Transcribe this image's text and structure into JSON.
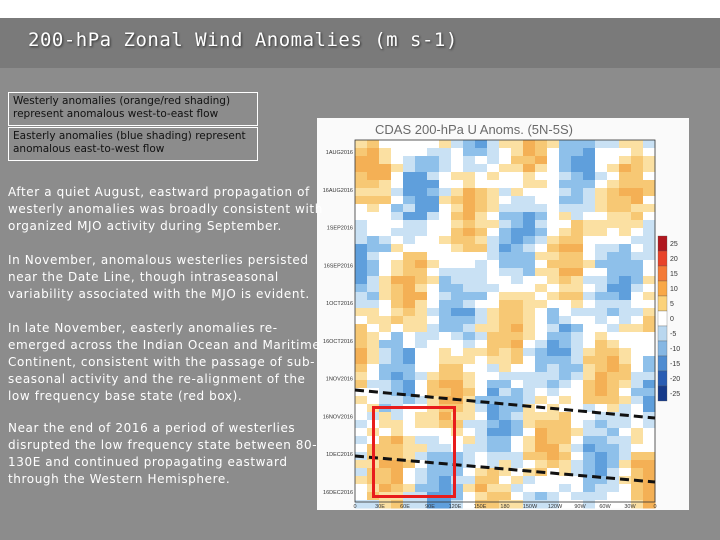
{
  "slide": {
    "title": "200-hPa Zonal Wind Anomalies (m s-1)",
    "legend": {
      "westerly": "Westerly anomalies (orange/red shading) represent anomalous west-to-east flow",
      "easterly": "Easterly anomalies (blue shading) represent anomalous east-to-west flow"
    },
    "paragraphs": [
      "After a quiet August, eastward propagation of westerly anomalies was broadly consistent with organized MJO activity during September.",
      "In November, anomalous westerlies persisted near the Date Line, though intraseasonal variability associated with the MJO is evident.",
      "In late November, easterly anomalies re-emerged across the Indian Ocean and Maritime Continent, consistent with the passage of sub-seasonal activity and the re-alignment of the low frequency base state (red box).",
      "Near the end of 2016 a period of westerlies disrupted the low frequency state between 80-130E and continued propagating eastward through the Western Hemisphere."
    ]
  },
  "figure": {
    "title": "CDAS 200-hPa U Anoms. (5N-5S)",
    "date_labels": [
      "1AUG2016",
      "16AUG2016",
      "1SEP2016",
      "16SEP2016",
      "1OCT2016",
      "16OCT2016",
      "1NOV2016",
      "16NOV2016",
      "1DEC2016",
      "16DEC2016"
    ],
    "lon_labels": [
      "0",
      "30E",
      "60E",
      "90E",
      "120E",
      "150E",
      "180",
      "150W",
      "120W",
      "90W",
      "60W",
      "30W",
      "0"
    ],
    "colorbar_labels": [
      "25",
      "20",
      "15",
      "10",
      "5",
      "0",
      "-5",
      "-10",
      "-15",
      "-20",
      "-25"
    ],
    "colorbar_colors": [
      "#b0171f",
      "#e8432a",
      "#f47a37",
      "#f9a847",
      "#fbd27a",
      "#ffffff",
      "#b9d7ef",
      "#86b7e3",
      "#4f8cd1",
      "#2a5db3",
      "#163a8a"
    ],
    "colors": {
      "westerly": "#f4b055",
      "easterly": "#8ec0ea",
      "highlight": "#e81c1c"
    }
  }
}
